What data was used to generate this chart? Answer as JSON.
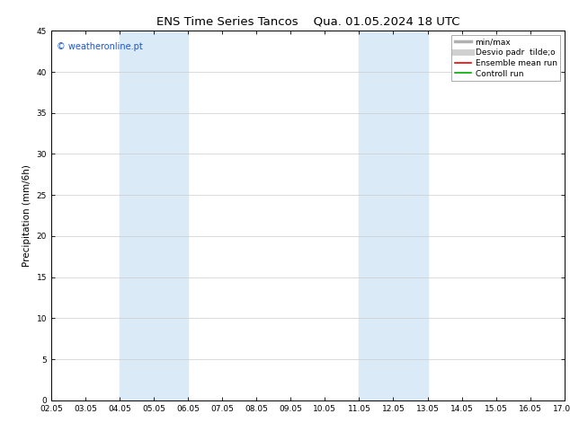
{
  "title_left": "ENS Time Series Tancos",
  "title_right": "Qua. 01.05.2024 18 UTC",
  "ylabel": "Precipitation (mm/6h)",
  "watermark": "© weatheronline.pt",
  "watermark_color": "#1a56cc",
  "ylim": [
    0,
    45
  ],
  "yticks": [
    0,
    5,
    10,
    15,
    20,
    25,
    30,
    35,
    40,
    45
  ],
  "xtick_labels": [
    "02.05",
    "03.05",
    "04.05",
    "05.05",
    "06.05",
    "07.05",
    "08.05",
    "09.05",
    "10.05",
    "11.05",
    "12.05",
    "13.05",
    "14.05",
    "15.05",
    "16.05",
    "17.05"
  ],
  "xtick_positions": [
    0,
    1,
    2,
    3,
    4,
    5,
    6,
    7,
    8,
    9,
    10,
    11,
    12,
    13,
    14,
    15
  ],
  "shaded_regions": [
    {
      "xmin": 2,
      "xmax": 4,
      "color": "#daeaf7"
    },
    {
      "xmin": 9,
      "xmax": 11,
      "color": "#daeaf7"
    }
  ],
  "bg_color": "#ffffff",
  "plot_bg_color": "#ffffff",
  "legend_items": [
    {
      "label": "min/max",
      "color": "#b0b0b0",
      "lw": 2.5,
      "style": "solid"
    },
    {
      "label": "Desvio padr  tilde;o",
      "color": "#d0d0d0",
      "lw": 5,
      "style": "solid"
    },
    {
      "label": "Ensemble mean run",
      "color": "#ee0000",
      "lw": 1.2,
      "style": "solid"
    },
    {
      "label": "Controll run",
      "color": "#00aa00",
      "lw": 1.2,
      "style": "solid"
    }
  ],
  "title_fontsize": 9.5,
  "tick_fontsize": 6.5,
  "ylabel_fontsize": 7.5,
  "watermark_fontsize": 7,
  "legend_fontsize": 6.5
}
